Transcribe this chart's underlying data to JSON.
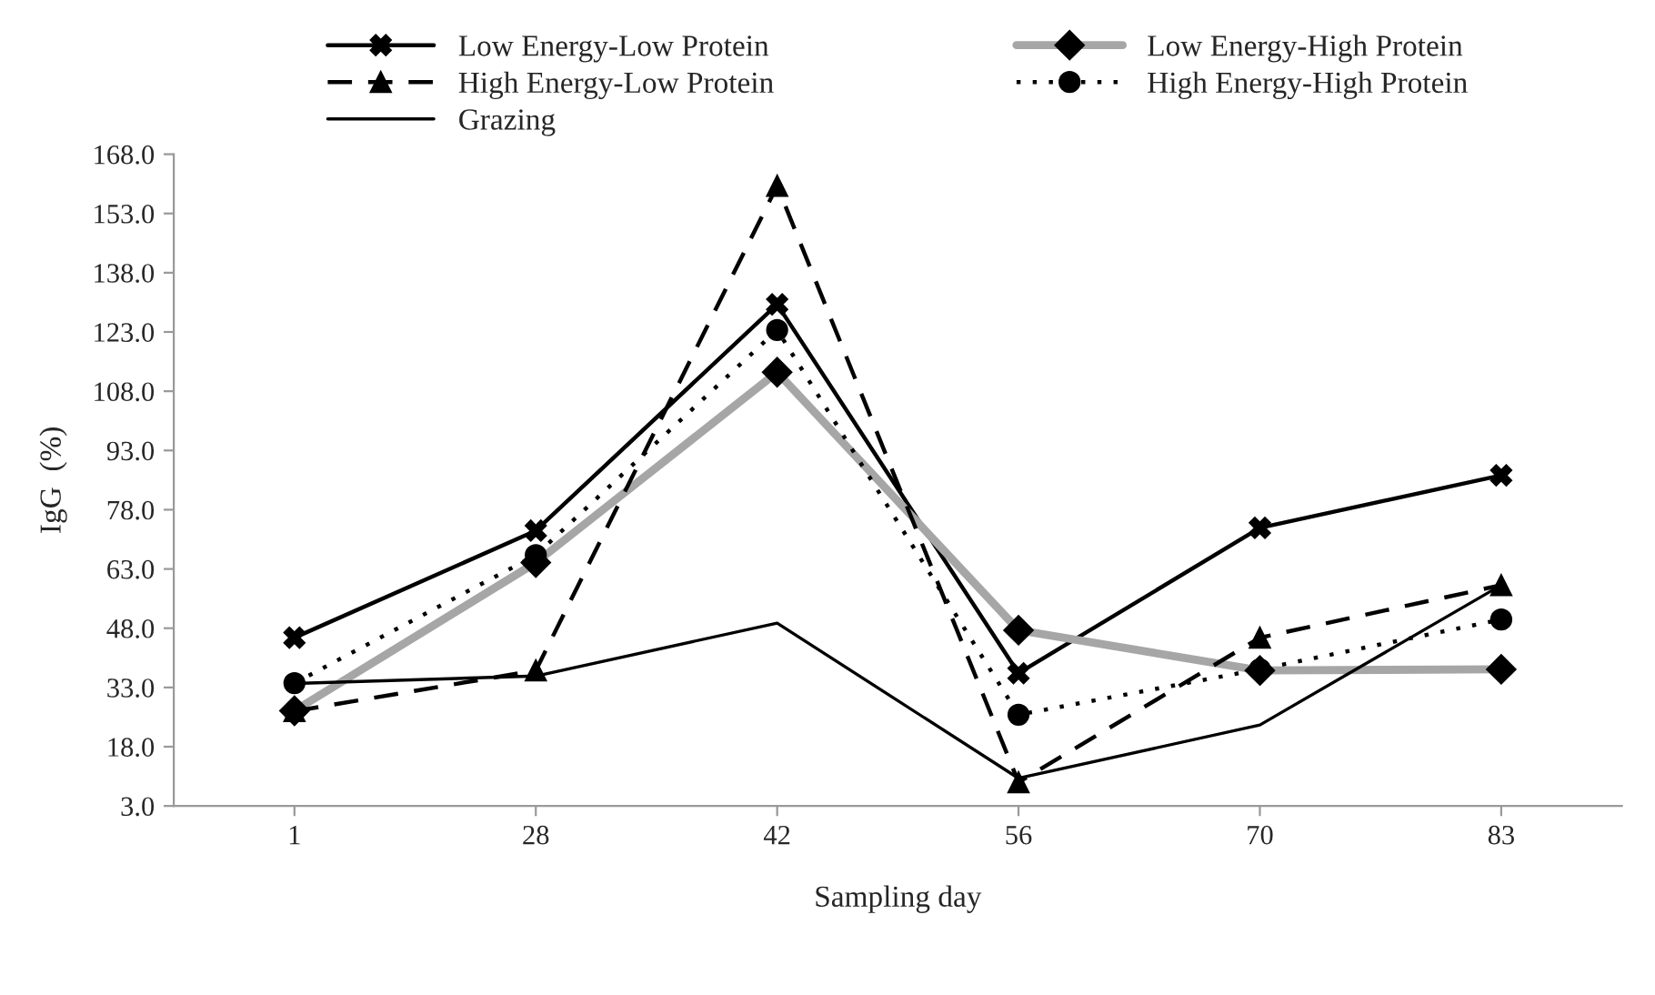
{
  "chart_data": {
    "type": "line",
    "xlabel": "Sampling day",
    "ylabel": "IgG  (%)",
    "categories": [
      "1",
      "28",
      "42",
      "56",
      "70",
      "83"
    ],
    "series": [
      {
        "name": "Low Energy-Low Protein",
        "color": "#000000",
        "marker": "cross",
        "line_style": "solid",
        "values": [
          45.6,
          72.7,
          130.0,
          36.6,
          73.4,
          86.7
        ]
      },
      {
        "name": "Low Energy-High Protein",
        "color": "#a6a6a6",
        "marker": "diamond",
        "line_style": "solid",
        "values": [
          27.1,
          64.6,
          112.8,
          47.5,
          37.3,
          37.6
        ]
      },
      {
        "name": "High Energy-Low Protein",
        "color": "#000000",
        "marker": "triangle",
        "line_style": "dashed",
        "values": [
          27.0,
          37.3,
          160.0,
          9.0,
          45.6,
          58.9
        ]
      },
      {
        "name": "High Energy-High Protein",
        "color": "#000000",
        "marker": "circle",
        "line_style": "dotted",
        "values": [
          34.1,
          66.5,
          123.5,
          26.1,
          37.6,
          50.2
        ]
      },
      {
        "name": "Grazing",
        "color": "#000000",
        "marker": "none",
        "line_style": "solid",
        "values": [
          34.0,
          35.9,
          49.3,
          10.0,
          23.5,
          58.9
        ]
      }
    ],
    "ylim": [
      3,
      168
    ],
    "yticks": [
      {
        "value": 3,
        "label": "3.0"
      },
      {
        "value": 18,
        "label": "18.0"
      },
      {
        "value": 33,
        "label": "33.0"
      },
      {
        "value": 48,
        "label": "48.0"
      },
      {
        "value": 63,
        "label": "63.0"
      },
      {
        "value": 78,
        "label": "78.0"
      },
      {
        "value": 93,
        "label": "93.0"
      },
      {
        "value": 108,
        "label": "108.0"
      },
      {
        "value": 123,
        "label": "123.0"
      },
      {
        "value": 138,
        "label": "138.0"
      },
      {
        "value": 153,
        "label": "153.0"
      },
      {
        "value": 168,
        "label": "168.0"
      }
    ],
    "grid": false,
    "legend": "top"
  }
}
